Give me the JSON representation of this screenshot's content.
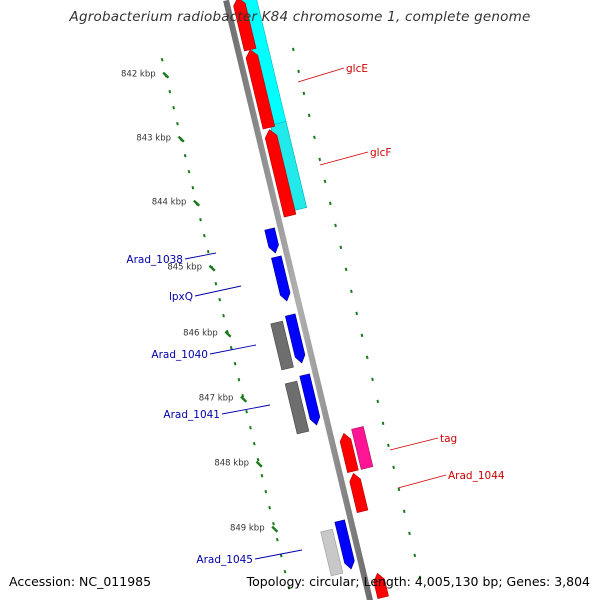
{
  "title": "Agrobacterium radiobacter K84 chromosome 1, complete genome",
  "footer": {
    "accession": "Accession: NC_011985",
    "stats": "Topology: circular; Length: 4,005,130 bp; Genes: 3,804"
  },
  "colors": {
    "backbone": "#8c8c8c",
    "forward_gene": "#0000ff",
    "reverse_gene": "#ff0000",
    "cds_strip": "#00ffff",
    "rna_gene": "#ff1493",
    "other_gene_dark": "#6e6e6e",
    "other_gene_light": "#c8c8c8",
    "tick": "#1a7a1a",
    "label_forward": "#0000aa",
    "label_reverse": "#cc0000"
  },
  "ruler": {
    "unit": "kbp",
    "ticks": [
      {
        "kbp": 842,
        "label": "842 kbp"
      },
      {
        "kbp": 843,
        "label": "843 kbp"
      },
      {
        "kbp": 844,
        "label": "844 kbp"
      },
      {
        "kbp": 845,
        "label": "845 kbp"
      },
      {
        "kbp": 846,
        "label": "846 kbp"
      },
      {
        "kbp": 847,
        "label": "847 kbp"
      },
      {
        "kbp": 848,
        "label": "848 kbp"
      },
      {
        "kbp": 849,
        "label": "849 kbp"
      }
    ]
  },
  "gene_labels": [
    {
      "text": "glcE",
      "strand": "reverse"
    },
    {
      "text": "glcF",
      "strand": "reverse"
    },
    {
      "text": "Arad_1038",
      "strand": "forward"
    },
    {
      "text": "lpxQ",
      "strand": "forward"
    },
    {
      "text": "Arad_1040",
      "strand": "forward"
    },
    {
      "text": "Arad_1041",
      "strand": "forward"
    },
    {
      "text": "tag",
      "strand": "reverse"
    },
    {
      "text": "Arad_1044",
      "strand": "reverse"
    },
    {
      "text": "Arad_1045",
      "strand": "forward"
    }
  ]
}
